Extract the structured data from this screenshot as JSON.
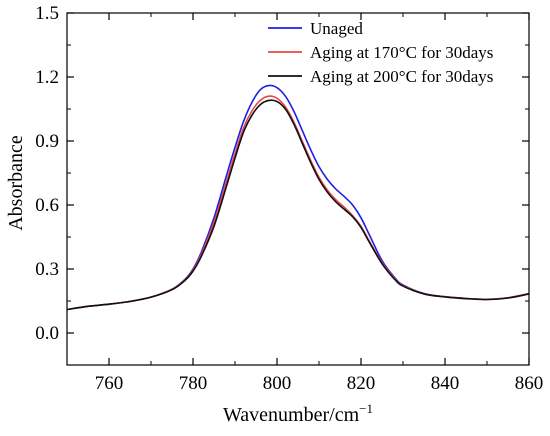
{
  "chart_data": {
    "type": "line",
    "title": "",
    "xlabel": "Wavenumber/cm",
    "xlabel_superscript": "−1",
    "ylabel": "Absorbance",
    "xlim": [
      750,
      860
    ],
    "ylim": [
      -0.15,
      1.5
    ],
    "xticks": [
      760,
      780,
      800,
      820,
      840,
      860
    ],
    "xtick_labels": [
      "760",
      "780",
      "800",
      "820",
      "840",
      "860"
    ],
    "yticks": [
      0.0,
      0.3,
      0.6,
      0.9,
      1.2,
      1.5
    ],
    "ytick_labels": [
      "0.0",
      "0.3",
      "0.6",
      "0.9",
      "1.2",
      "1.5"
    ],
    "x_minor_step": 10,
    "y_minor_step": 0.15,
    "grid": false,
    "legend_position": "top-right",
    "x": [
      750,
      755,
      760,
      765,
      770,
      775,
      778,
      780,
      782,
      785,
      788,
      790,
      792,
      794,
      796,
      798,
      800,
      802,
      804,
      806,
      808,
      810,
      812,
      814,
      816,
      818,
      820,
      822,
      825,
      828,
      830,
      835,
      840,
      845,
      850,
      855,
      860
    ],
    "series": [
      {
        "name": "Unaged",
        "color": "#1f1fe6",
        "values": [
          0.11,
          0.125,
          0.135,
          0.148,
          0.168,
          0.205,
          0.25,
          0.3,
          0.38,
          0.54,
          0.74,
          0.87,
          0.99,
          1.08,
          1.14,
          1.16,
          1.15,
          1.11,
          1.04,
          0.95,
          0.86,
          0.78,
          0.72,
          0.675,
          0.64,
          0.6,
          0.54,
          0.46,
          0.34,
          0.26,
          0.225,
          0.185,
          0.17,
          0.162,
          0.158,
          0.165,
          0.185
        ]
      },
      {
        "name": "Aging at 170°C for 30days",
        "color": "#e8474a",
        "values": [
          0.11,
          0.125,
          0.135,
          0.148,
          0.168,
          0.205,
          0.248,
          0.295,
          0.37,
          0.52,
          0.71,
          0.84,
          0.96,
          1.04,
          1.09,
          1.11,
          1.1,
          1.06,
          0.99,
          0.9,
          0.81,
          0.73,
          0.67,
          0.625,
          0.59,
          0.55,
          0.5,
          0.43,
          0.33,
          0.255,
          0.222,
          0.184,
          0.17,
          0.162,
          0.158,
          0.165,
          0.185
        ]
      },
      {
        "name": "Aging at 200°C for 30days",
        "color": "#111111",
        "values": [
          0.11,
          0.125,
          0.135,
          0.148,
          0.168,
          0.203,
          0.245,
          0.29,
          0.36,
          0.5,
          0.69,
          0.82,
          0.94,
          1.02,
          1.07,
          1.09,
          1.085,
          1.05,
          0.98,
          0.89,
          0.8,
          0.72,
          0.66,
          0.615,
          0.58,
          0.545,
          0.495,
          0.425,
          0.325,
          0.252,
          0.22,
          0.183,
          0.169,
          0.161,
          0.157,
          0.164,
          0.183
        ]
      }
    ]
  }
}
